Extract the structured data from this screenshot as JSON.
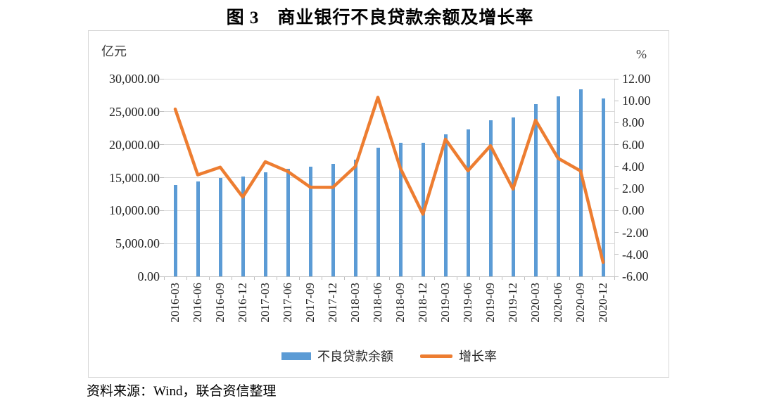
{
  "title": "图 3　商业银行不良贷款余额及增长率",
  "source_note": "资料来源：Wind，联合资信整理",
  "colors": {
    "bar": "#5B9BD5",
    "line": "#ED7D31",
    "gridline": "#D9D9D9",
    "axis": "#BFBFBF",
    "text": "#262626"
  },
  "chart_data": {
    "type": "combo-bar-line",
    "title": "图 3　商业银行不良贷款余额及增长率",
    "grid": true,
    "legend_position": "bottom",
    "categories": [
      "2016-03",
      "2016-06",
      "2016-09",
      "2016-12",
      "2017-03",
      "2017-06",
      "2017-09",
      "2017-12",
      "2018-03",
      "2018-06",
      "2018-09",
      "2018-12",
      "2019-03",
      "2019-06",
      "2019-09",
      "2019-12",
      "2020-03",
      "2020-06",
      "2020-09",
      "2020-12"
    ],
    "series": [
      {
        "name": "不良贷款余额",
        "type": "bar",
        "axis": "left",
        "color": "#5B9BD5",
        "values": [
          13921,
          14373,
          14939,
          15123,
          15795,
          16358,
          16704,
          17057,
          17742,
          19571,
          20322,
          20254,
          21571,
          22352,
          23672,
          24135,
          26121,
          27364,
          28350,
          27015
        ]
      },
      {
        "name": "增长率",
        "type": "line",
        "axis": "right",
        "color": "#ED7D31",
        "values": [
          9.24,
          3.25,
          3.94,
          1.23,
          4.44,
          3.56,
          2.12,
          2.11,
          4.02,
          10.31,
          3.84,
          -0.33,
          6.5,
          3.62,
          5.9,
          1.96,
          8.23,
          4.76,
          3.6,
          -4.71
        ]
      }
    ],
    "left_axis": {
      "title": "亿元",
      "min": 0,
      "max": 30000,
      "step": 5000,
      "tick_labels": [
        "30,000.00",
        "25,000.00",
        "20,000.00",
        "15,000.00",
        "10,000.00",
        "5,000.00",
        "0.00"
      ]
    },
    "right_axis": {
      "title": "%",
      "min": -6,
      "max": 12,
      "step": 2,
      "tick_labels": [
        "12.00",
        "10.00",
        "8.00",
        "6.00",
        "4.00",
        "2.00",
        "0.00",
        "-2.00",
        "-4.00",
        "-6.00"
      ]
    }
  }
}
